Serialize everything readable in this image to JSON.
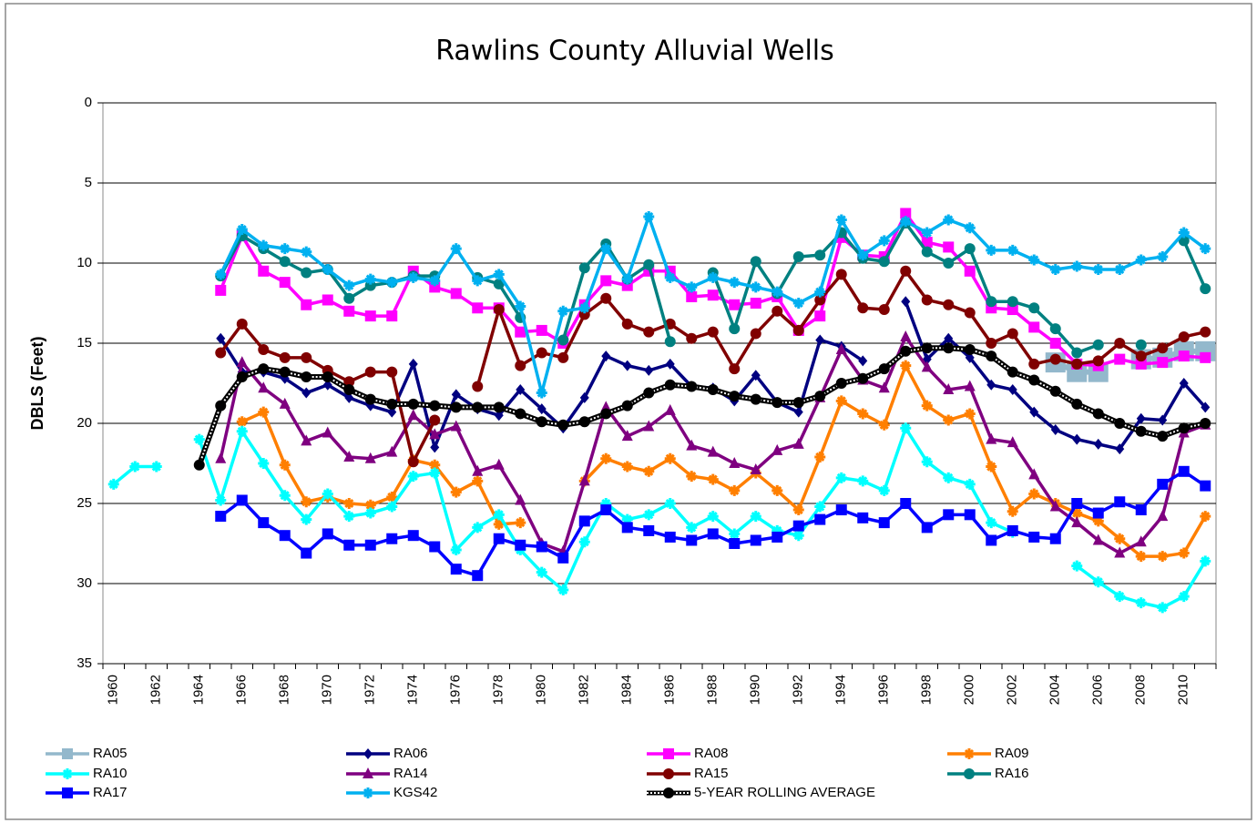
{
  "chart_data": {
    "type": "line",
    "title": "Rawlins County Alluvial Wells",
    "y_label": "DBLS (Feet)",
    "y_inverted": true,
    "ylim": [
      0,
      35
    ],
    "yticks": [
      0,
      5,
      10,
      15,
      20,
      25,
      30,
      35
    ],
    "grid": true,
    "legend": "bottom",
    "categories": [
      "1960",
      null,
      "1962",
      null,
      "1964",
      null,
      "1966",
      null,
      "1968",
      null,
      "1970",
      null,
      "1972",
      null,
      "1974",
      null,
      "1976",
      null,
      "1978",
      null,
      "1980",
      null,
      "1982",
      null,
      "1984",
      null,
      "1986",
      null,
      "1988",
      null,
      "1990",
      null,
      "1992",
      null,
      "1994",
      null,
      "1996",
      null,
      "1998",
      null,
      "2000",
      null,
      "2002",
      null,
      "2004",
      null,
      "2006",
      null,
      "2008",
      null,
      "2010",
      null
    ],
    "series": [
      {
        "name": "RA05",
        "color": "#93b8cc",
        "marker": "bigsquare",
        "values": [
          null,
          null,
          null,
          null,
          null,
          null,
          null,
          null,
          null,
          null,
          null,
          null,
          null,
          null,
          null,
          null,
          null,
          null,
          null,
          null,
          null,
          null,
          null,
          null,
          null,
          null,
          null,
          null,
          null,
          null,
          null,
          null,
          null,
          null,
          null,
          null,
          null,
          null,
          null,
          null,
          null,
          null,
          null,
          null,
          16.2,
          16.8,
          16.8,
          null,
          16,
          15.9,
          15.5,
          15.5
        ]
      },
      {
        "name": "RA06",
        "color": "#000080",
        "marker": "diamond",
        "values": [
          null,
          null,
          null,
          null,
          null,
          14.7,
          16.8,
          16.8,
          17.2,
          18.1,
          17.6,
          18.4,
          18.9,
          19.3,
          16.3,
          21.5,
          18.2,
          19.1,
          19.5,
          17.9,
          19.1,
          20.3,
          18.4,
          15.8,
          16.4,
          16.7,
          16.3,
          17.7,
          17.8,
          18.6,
          17,
          18.7,
          19.3,
          14.8,
          15.2,
          16.1,
          null,
          12.4,
          16,
          14.7,
          15.9,
          17.6,
          17.9,
          19.3,
          20.4,
          21,
          21.3,
          21.6,
          19.7,
          19.8,
          17.5,
          19
        ]
      },
      {
        "name": "RA08",
        "color": "#ff00ff",
        "marker": "square",
        "values": [
          null,
          null,
          null,
          null,
          null,
          11.7,
          8.3,
          10.5,
          11.2,
          12.6,
          12.3,
          13,
          13.3,
          13.3,
          10.5,
          11.5,
          11.9,
          12.8,
          12.8,
          14.3,
          14.2,
          15,
          12.6,
          11.1,
          11.4,
          10.5,
          10.5,
          12.1,
          12,
          12.6,
          12.5,
          12.1,
          14.2,
          13.3,
          8.4,
          9.5,
          9.6,
          6.9,
          8.7,
          9,
          10.5,
          12.8,
          12.9,
          14,
          15,
          16.3,
          16.4,
          16,
          16.3,
          16.2,
          15.8,
          15.9
        ]
      },
      {
        "name": "RA09",
        "color": "#ff7f00",
        "marker": "star",
        "values": [
          null,
          null,
          null,
          null,
          null,
          null,
          19.9,
          19.3,
          22.6,
          24.9,
          24.6,
          25,
          25.1,
          24.6,
          22.3,
          22.6,
          24.3,
          23.6,
          26.3,
          26.2,
          null,
          null,
          23.6,
          22.2,
          22.7,
          23,
          22.2,
          23.3,
          23.5,
          24.2,
          23.1,
          24.2,
          25.4,
          22.1,
          18.6,
          19.4,
          20.1,
          16.4,
          18.9,
          19.8,
          19.4,
          22.7,
          25.5,
          24.4,
          25,
          25.6,
          26.1,
          27.2,
          28.3,
          28.3,
          28.1,
          25.8
        ]
      },
      {
        "name": "RA10",
        "color": "#00ffff",
        "marker": "star",
        "values": [
          23.8,
          22.7,
          22.7,
          null,
          21,
          24.8,
          20.5,
          22.5,
          24.5,
          26,
          24.4,
          25.8,
          25.6,
          25.2,
          23.3,
          23.1,
          27.9,
          26.5,
          25.7,
          27.9,
          29.3,
          30.4,
          27.4,
          25,
          26,
          25.7,
          25,
          26.5,
          25.8,
          26.9,
          25.8,
          26.7,
          27,
          25.2,
          23.4,
          23.6,
          24.2,
          20.3,
          22.4,
          23.4,
          23.8,
          26.2,
          26.8,
          null,
          null,
          28.9,
          29.9,
          30.8,
          31.2,
          31.5,
          30.8,
          28.6
        ]
      },
      {
        "name": "RA14",
        "color": "#7f0080",
        "marker": "triangle",
        "values": [
          null,
          null,
          null,
          null,
          null,
          22.2,
          16.2,
          17.8,
          18.8,
          21.1,
          20.6,
          22.1,
          22.2,
          21.8,
          19.5,
          20.7,
          20.2,
          23,
          22.6,
          24.8,
          27.5,
          28,
          23.6,
          19,
          20.8,
          20.2,
          19.2,
          21.4,
          21.8,
          22.5,
          22.9,
          21.7,
          21.3,
          18.4,
          15.4,
          17.3,
          17.8,
          14.6,
          16.5,
          17.9,
          17.7,
          21,
          21.2,
          23.2,
          25.2,
          26.2,
          27.3,
          28.1,
          27.4,
          25.8,
          20.6,
          20.1
        ]
      },
      {
        "name": "RA15",
        "color": "#800000",
        "marker": "circle",
        "values": [
          null,
          null,
          null,
          null,
          null,
          15.6,
          13.8,
          15.4,
          15.9,
          15.9,
          16.7,
          17.4,
          16.8,
          16.8,
          22.4,
          19.8,
          null,
          17.7,
          12.9,
          16.4,
          15.6,
          15.9,
          13.2,
          12.2,
          13.8,
          14.3,
          13.8,
          14.7,
          14.3,
          16.6,
          14.4,
          13,
          14.2,
          12.3,
          10.7,
          12.8,
          12.9,
          10.5,
          12.3,
          12.6,
          13.1,
          15,
          14.4,
          16.3,
          16,
          16.3,
          16.1,
          15,
          15.8,
          15.3,
          14.6,
          14.3
        ]
      },
      {
        "name": "RA16",
        "color": "#008080",
        "marker": "circle",
        "values": [
          null,
          null,
          null,
          null,
          null,
          10.8,
          8.3,
          9.1,
          9.9,
          10.6,
          10.4,
          12.2,
          11.4,
          11.2,
          10.8,
          10.8,
          null,
          10.9,
          11.3,
          13.4,
          null,
          14.8,
          10.3,
          8.8,
          11,
          10.1,
          14.9,
          null,
          10.6,
          14.1,
          9.9,
          11.9,
          9.6,
          9.5,
          8.1,
          9.7,
          9.9,
          7.5,
          9.3,
          10,
          9.1,
          12.4,
          12.4,
          12.8,
          14.1,
          15.6,
          15.1,
          null,
          15.1,
          null,
          8.6,
          11.6
        ]
      },
      {
        "name": "RA17",
        "color": "#0000ff",
        "marker": "square",
        "values": [
          null,
          null,
          null,
          null,
          null,
          25.8,
          24.8,
          26.2,
          27,
          28.1,
          26.9,
          27.6,
          27.6,
          27.2,
          27,
          27.7,
          29.1,
          29.5,
          27.2,
          27.6,
          27.7,
          28.4,
          26.1,
          25.4,
          26.5,
          26.7,
          27.1,
          27.3,
          26.9,
          27.5,
          27.3,
          27.1,
          26.4,
          26,
          25.4,
          25.9,
          26.2,
          25,
          26.5,
          25.7,
          25.7,
          27.3,
          26.7,
          27.1,
          27.2,
          25,
          25.6,
          24.9,
          25.4,
          23.8,
          23,
          23.9
        ]
      },
      {
        "name": "KGS42",
        "color": "#00b0f0",
        "marker": "star",
        "values": [
          null,
          null,
          null,
          null,
          null,
          10.7,
          7.9,
          8.9,
          9.1,
          9.3,
          10.4,
          11.4,
          11,
          11.2,
          10.9,
          11.1,
          9.1,
          11.1,
          10.7,
          12.7,
          18.1,
          13,
          12.8,
          9.1,
          11,
          7.1,
          10.9,
          11.5,
          10.9,
          11.2,
          11.5,
          11.8,
          12.5,
          11.8,
          7.3,
          9.5,
          8.6,
          7.4,
          8.1,
          7.3,
          7.8,
          9.2,
          9.2,
          9.8,
          10.4,
          10.2,
          10.4,
          10.4,
          9.8,
          9.6,
          8.1,
          9.1
        ]
      },
      {
        "name": "5-YEAR ROLLING  AVERAGE",
        "color": "#000000",
        "marker": "dotted",
        "values": [
          null,
          null,
          null,
          null,
          22.6,
          18.9,
          17.1,
          16.6,
          16.8,
          17.1,
          17.1,
          17.9,
          18.5,
          18.8,
          18.8,
          18.9,
          19,
          19,
          19,
          19.4,
          19.9,
          20.1,
          19.9,
          19.4,
          18.9,
          18.1,
          17.6,
          17.7,
          17.9,
          18.3,
          18.5,
          18.7,
          18.7,
          18.3,
          17.5,
          17.2,
          16.6,
          15.5,
          15.3,
          15.3,
          15.4,
          15.8,
          16.8,
          17.3,
          18,
          18.8,
          19.4,
          20,
          20.5,
          20.8,
          20.3,
          20
        ]
      }
    ]
  }
}
